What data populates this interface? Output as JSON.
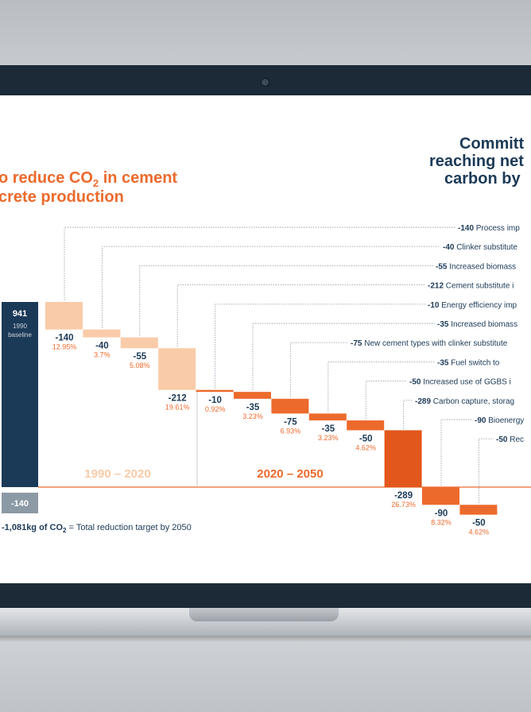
{
  "title_left": {
    "line1_pre": "o reduce CO",
    "line1_sub": "2",
    "line1_post": " in cement",
    "line2": "crete production"
  },
  "title_right": {
    "line1": "Committ",
    "line2": "reaching net",
    "line3": "carbon by"
  },
  "baseline": {
    "value": "941",
    "label1": "1990",
    "label2": "baseline"
  },
  "remaining": {
    "value": "-140"
  },
  "period_labels": {
    "first": "1990 – 2020",
    "second": "2020 – 2050"
  },
  "footer": {
    "pre": "-1,081kg of CO",
    "sub": "2",
    "post": " = Total reduction target by 2050"
  },
  "colors": {
    "navy": "#1b3a57",
    "light_orange": "#f9cba8",
    "orange": "#ec6a2c",
    "dark_orange": "#e2571c",
    "grey": "#8c9aa6"
  },
  "chart_data": {
    "type": "bar",
    "subtype": "waterfall",
    "baseline": 941,
    "target_total": -1081,
    "remaining": -140,
    "steps": [
      {
        "value": -140,
        "value_label": "-140",
        "pct": "12.95%",
        "label": "Process imp",
        "period": "1990-2020"
      },
      {
        "value": -40,
        "value_label": "-40",
        "pct": "3.7%",
        "label": "Clinker substitute",
        "period": "1990-2020"
      },
      {
        "value": -55,
        "value_label": "-55",
        "pct": "5.08%",
        "label": "Increased biomass",
        "period": "1990-2020"
      },
      {
        "value": -212,
        "value_label": "-212",
        "pct": "19.61%",
        "label": "Cement substitute i",
        "period": "1990-2020"
      },
      {
        "value": -10,
        "value_label": "-10",
        "pct": "0.92%",
        "label": "Energy efficiency imp",
        "period": "2020-2050"
      },
      {
        "value": -35,
        "value_label": "-35",
        "pct": "3.23%",
        "label": "Increased biomass",
        "period": "2020-2050"
      },
      {
        "value": -75,
        "value_label": "-75",
        "pct": "6.93%",
        "label": "New cement types with clinker substitute",
        "period": "2020-2050"
      },
      {
        "value": -35,
        "value_label": "-35",
        "pct": "3.23%",
        "label": "Fuel switch to",
        "period": "2020-2050"
      },
      {
        "value": -50,
        "value_label": "-50",
        "pct": "4.62%",
        "label": "Increased use of GGBS i",
        "period": "2020-2050"
      },
      {
        "value": -289,
        "value_label": "-289",
        "pct": "26.73%",
        "label": "Carbon capture, storag",
        "period": "2020-2050"
      },
      {
        "value": -90,
        "value_label": "-90",
        "pct": "8.32%",
        "label": "Bioenergy",
        "period": "2020-2050"
      },
      {
        "value": -50,
        "value_label": "-50",
        "pct": "4.62%",
        "label": "Rec",
        "period": "2020-2050"
      }
    ]
  }
}
